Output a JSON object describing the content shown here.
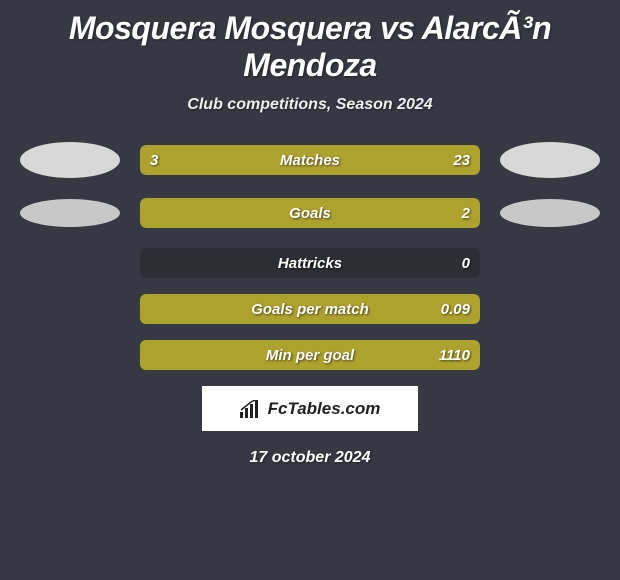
{
  "title": "Mosquera Mosquera vs AlarcÃ³n Mendoza",
  "subtitle": "Club competitions, Season 2024",
  "background_color": "#363942",
  "bar_track_color": "#2c2e35",
  "bar_fill_color": "#aea22f",
  "text_color": "#ffffff",
  "avatar_color_primary": "#d8d8d8",
  "avatar_color_secondary": "#c8c8c8",
  "logo_background": "#ffffff",
  "logo_text": "FcTables.com",
  "date": "17 october 2024",
  "stats": [
    {
      "label": "Matches",
      "left_val": "3",
      "right_val": "23",
      "left_pct": 18,
      "right_pct": 82,
      "show_avatars": "primary"
    },
    {
      "label": "Goals",
      "left_val": "",
      "right_val": "2",
      "left_pct": 50,
      "right_pct": 50,
      "show_avatars": "secondary",
      "full_fill": true
    },
    {
      "label": "Hattricks",
      "left_val": "",
      "right_val": "0",
      "left_pct": 0,
      "right_pct": 0,
      "show_avatars": "none"
    },
    {
      "label": "Goals per match",
      "left_val": "",
      "right_val": "0.09",
      "left_pct": 0,
      "right_pct": 100,
      "show_avatars": "none"
    },
    {
      "label": "Min per goal",
      "left_val": "",
      "right_val": "1110",
      "left_pct": 0,
      "right_pct": 100,
      "show_avatars": "none"
    }
  ]
}
